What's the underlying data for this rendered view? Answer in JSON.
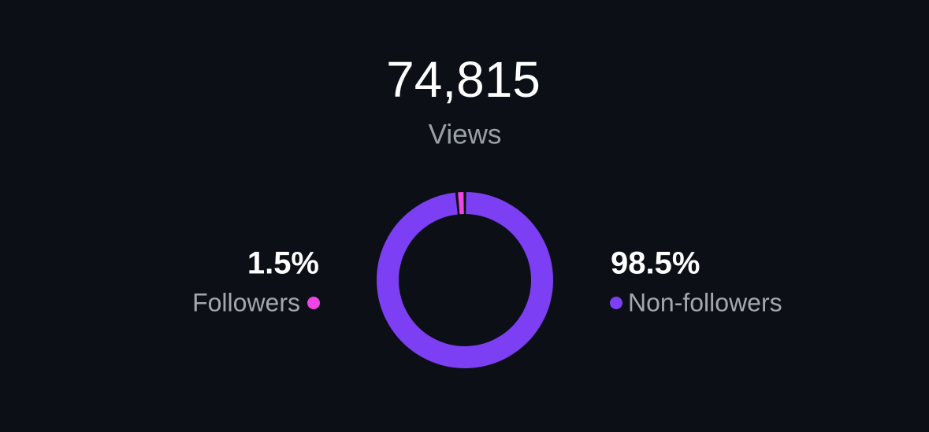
{
  "chart_data": {
    "type": "donut",
    "total": "74,815",
    "total_label": "Views",
    "series": [
      {
        "name": "Followers",
        "color": "#f044e6",
        "value": 1.5,
        "value_label": "1.5%"
      },
      {
        "name": "Non-followers",
        "color": "#7c3ff3",
        "value": 98.5,
        "value_label": "98.5%"
      }
    ]
  }
}
